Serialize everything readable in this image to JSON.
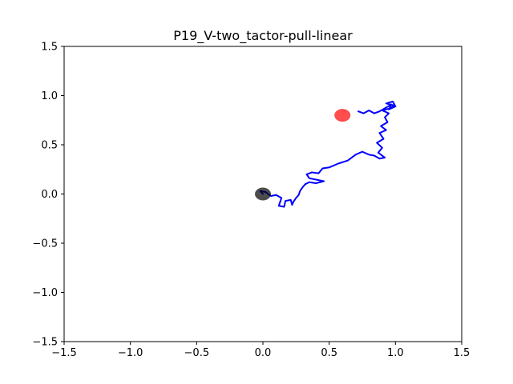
{
  "chart_data": {
    "type": "line",
    "title": "P19_V-two_tactor-pull-linear",
    "xlabel": "",
    "ylabel": "",
    "xlim": [
      -1.5,
      1.5
    ],
    "ylim": [
      -1.5,
      1.5
    ],
    "xticks": [
      -1.5,
      -1.0,
      -0.5,
      0.0,
      0.5,
      1.0,
      1.5
    ],
    "yticks": [
      -1.5,
      -1.0,
      -0.5,
      0.0,
      0.5,
      1.0,
      1.5
    ],
    "xtick_labels": [
      "−1.5",
      "−1.0",
      "−0.5",
      "0.0",
      "0.5",
      "1.0",
      "1.5"
    ],
    "ytick_labels": [
      "−1.5",
      "−1.0",
      "−0.5",
      "0.0",
      "0.5",
      "1.0",
      "1.5"
    ],
    "grid": false,
    "colors": {
      "trajectory": "#0000ff",
      "start_marker": "#000000",
      "target_marker": "#ff0000"
    },
    "series": [
      {
        "values": [
          [
            0.0,
            0.0
          ],
          [
            -0.02,
            0.03
          ],
          [
            0.02,
            0.02
          ],
          [
            0.04,
            0.0
          ],
          [
            0.06,
            -0.02
          ],
          [
            0.1,
            -0.01
          ],
          [
            0.14,
            -0.04
          ],
          [
            0.12,
            -0.12
          ],
          [
            0.16,
            -0.13
          ],
          [
            0.17,
            -0.07
          ],
          [
            0.21,
            -0.06
          ],
          [
            0.22,
            -0.11
          ],
          [
            0.23,
            -0.08
          ],
          [
            0.25,
            -0.04
          ],
          [
            0.27,
            -0.01
          ],
          [
            0.28,
            0.03
          ],
          [
            0.3,
            0.07
          ],
          [
            0.32,
            0.1
          ],
          [
            0.35,
            0.12
          ],
          [
            0.4,
            0.11
          ],
          [
            0.46,
            0.13
          ],
          [
            0.35,
            0.16
          ],
          [
            0.33,
            0.2
          ],
          [
            0.37,
            0.22
          ],
          [
            0.42,
            0.21
          ],
          [
            0.45,
            0.26
          ],
          [
            0.5,
            0.27
          ],
          [
            0.57,
            0.31
          ],
          [
            0.64,
            0.34
          ],
          [
            0.7,
            0.4
          ],
          [
            0.75,
            0.43
          ],
          [
            0.8,
            0.4
          ],
          [
            0.84,
            0.39
          ],
          [
            0.88,
            0.36
          ],
          [
            0.92,
            0.37
          ],
          [
            0.87,
            0.42
          ],
          [
            0.9,
            0.47
          ],
          [
            0.86,
            0.52
          ],
          [
            0.91,
            0.56
          ],
          [
            0.88,
            0.62
          ],
          [
            0.93,
            0.65
          ],
          [
            0.89,
            0.69
          ],
          [
            0.94,
            0.73
          ],
          [
            0.92,
            0.78
          ],
          [
            0.95,
            0.82
          ],
          [
            0.9,
            0.85
          ],
          [
            0.96,
            0.87
          ],
          [
            0.99,
            0.9
          ],
          [
            0.93,
            0.92
          ],
          [
            0.98,
            0.94
          ],
          [
            1.0,
            0.89
          ],
          [
            0.95,
            0.86
          ],
          [
            0.97,
            0.91
          ],
          [
            0.88,
            0.84
          ],
          [
            0.84,
            0.82
          ],
          [
            0.8,
            0.85
          ],
          [
            0.76,
            0.82
          ],
          [
            0.72,
            0.84
          ]
        ]
      }
    ],
    "markers": [
      {
        "x": 0.0,
        "y": 0.0,
        "color": "#000000"
      },
      {
        "x": 0.6,
        "y": 0.8,
        "color": "#ff0000"
      }
    ]
  }
}
